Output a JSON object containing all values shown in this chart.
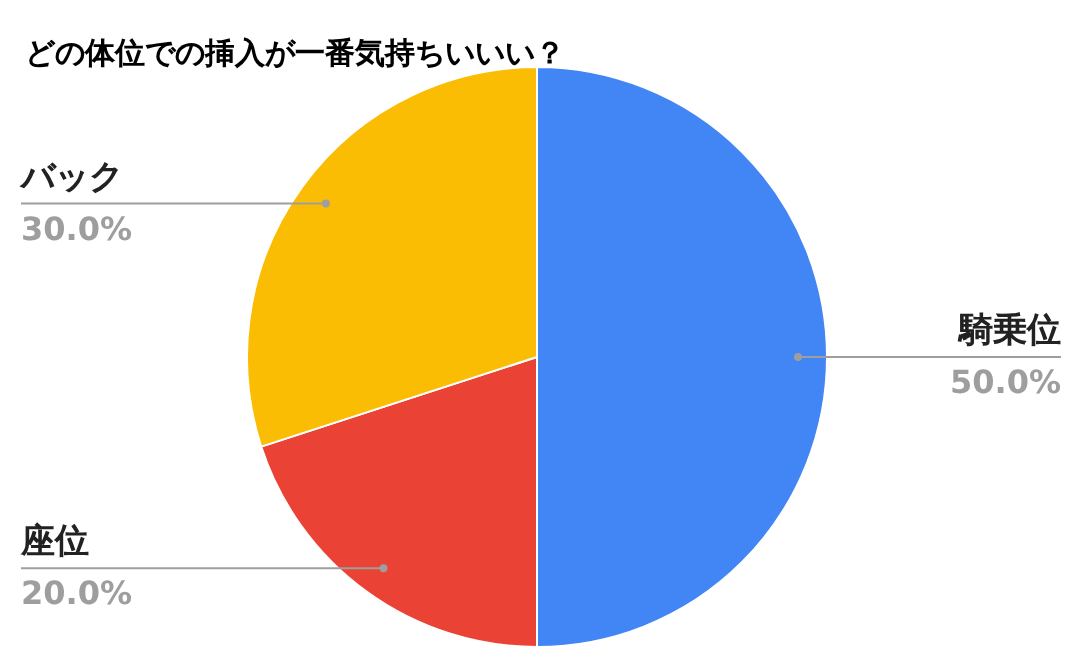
{
  "chart_data": {
    "type": "pie",
    "title": "どの体位での挿入が一番気持ちいいい？",
    "categories": [
      "騎乗位",
      "座位",
      "バック"
    ],
    "values": [
      50,
      20,
      30
    ],
    "colors": [
      "#4285f4",
      "#ea4335",
      "#fbbc04"
    ],
    "value_labels": [
      "50.0%",
      "20.0%",
      "30.0%"
    ]
  }
}
